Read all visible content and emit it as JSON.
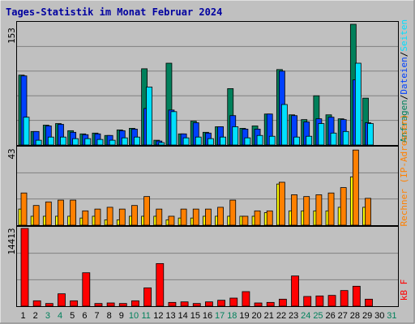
{
  "header": {
    "title": "Tages-Statistik im Monat Februar 2024"
  },
  "colors": {
    "background": "#c0c0c0",
    "panel": "#c0c0c0",
    "grid": "#808080",
    "title": "#0000a0",
    "anfragen": "#00805b",
    "dateien": "#0040ff",
    "seiten": "#00e0ff",
    "rechner": "#ffff00",
    "besuche": "#ff8000",
    "kbf": "#ff0000",
    "weekday": "#000000",
    "weekend": "#00805b"
  },
  "chart_data": [
    {
      "type": "bar",
      "name": "hits",
      "ymax_label": "153",
      "right_label": {
        "parts": [
          {
            "text": "Anfragen",
            "color": "#00805b"
          },
          {
            "text": "/",
            "color": "#000000"
          },
          {
            "text": "Dateien",
            "color": "#0040ff"
          },
          {
            "text": "/",
            "color": "#000000"
          },
          {
            "text": "Seiten",
            "color": "#00e0ff"
          }
        ]
      },
      "ylim": [
        0,
        153
      ],
      "categories": [
        "1",
        "2",
        "3",
        "4",
        "5",
        "6",
        "7",
        "8",
        "9",
        "10",
        "11",
        "12",
        "13",
        "14",
        "15",
        "16",
        "17",
        "18",
        "19",
        "20",
        "21",
        "22",
        "23",
        "24",
        "25",
        "26",
        "27",
        "28",
        "29",
        "30",
        "31"
      ],
      "series": [
        {
          "name": "Anfragen",
          "color": "#00805b",
          "values": [
            88,
            17,
            25,
            27,
            18,
            14,
            15,
            12,
            19,
            21,
            96,
            6,
            103,
            14,
            30,
            16,
            23,
            71,
            21,
            24,
            39,
            95,
            38,
            32,
            62,
            38,
            33,
            152,
            59,
            0,
            0
          ]
        },
        {
          "name": "Dateien",
          "color": "#0040ff",
          "values": [
            87,
            17,
            24,
            26,
            16,
            13,
            14,
            12,
            18,
            20,
            46,
            5,
            44,
            14,
            28,
            15,
            23,
            37,
            20,
            20,
            39,
            93,
            37,
            29,
            33,
            35,
            32,
            82,
            28,
            0,
            0
          ]
        },
        {
          "name": "Seiten",
          "color": "#00e0ff",
          "values": [
            35,
            6,
            10,
            10,
            8,
            8,
            7,
            6,
            9,
            10,
            73,
            3,
            42,
            9,
            10,
            8,
            10,
            23,
            9,
            12,
            11,
            51,
            10,
            11,
            27,
            15,
            17,
            103,
            27,
            0,
            0
          ]
        }
      ]
    },
    {
      "type": "bar",
      "name": "visits",
      "ymax_label": "43",
      "right_label": {
        "parts": [
          {
            "text": "Rechner (IP-Adressen)",
            "color": "#ff8000"
          }
        ]
      },
      "ylim": [
        0,
        43
      ],
      "categories": [
        "1",
        "2",
        "3",
        "4",
        "5",
        "6",
        "7",
        "8",
        "9",
        "10",
        "11",
        "12",
        "13",
        "14",
        "15",
        "16",
        "17",
        "18",
        "19",
        "20",
        "21",
        "22",
        "23",
        "24",
        "25",
        "26",
        "27",
        "28",
        "29",
        "30",
        "31"
      ],
      "series": [
        {
          "name": "Rechner",
          "color": "#ffff00",
          "values": [
            9,
            5,
            5,
            5,
            5,
            4,
            5,
            3,
            3,
            5,
            5,
            5,
            3,
            4,
            4,
            5,
            5,
            5,
            5,
            5,
            7,
            23,
            8,
            8,
            8,
            8,
            10,
            27,
            10,
            0,
            0
          ]
        },
        {
          "name": "Besuche",
          "color": "#ff8000",
          "values": [
            18,
            11,
            13,
            14,
            14,
            8,
            9,
            10,
            9,
            11,
            16,
            9,
            5,
            9,
            9,
            9,
            10,
            14,
            5,
            8,
            8,
            24,
            17,
            16,
            17,
            18,
            21,
            42,
            15,
            0,
            0
          ]
        }
      ]
    },
    {
      "type": "bar",
      "name": "volume",
      "ymax_label": "14413",
      "right_label": {
        "parts": [
          {
            "text": "kB F",
            "color": "#ff0000"
          }
        ]
      },
      "ylim": [
        0,
        14413
      ],
      "categories": [
        "1",
        "2",
        "3",
        "4",
        "5",
        "6",
        "7",
        "8",
        "9",
        "10",
        "11",
        "12",
        "13",
        "14",
        "15",
        "16",
        "17",
        "18",
        "19",
        "20",
        "21",
        "22",
        "23",
        "24",
        "25",
        "26",
        "27",
        "28",
        "29",
        "30",
        "31"
      ],
      "series": [
        {
          "name": "kB F",
          "color": "#ff0000",
          "values": [
            14413,
            1000,
            500,
            2300,
            1000,
            6200,
            500,
            600,
            500,
            1000,
            3400,
            7900,
            700,
            800,
            500,
            800,
            1100,
            1500,
            2700,
            600,
            700,
            1300,
            5600,
            1800,
            1900,
            2000,
            2900,
            3700,
            1300,
            0,
            0
          ]
        }
      ]
    }
  ],
  "x_axis": {
    "labels": [
      "1",
      "2",
      "3",
      "4",
      "5",
      "6",
      "7",
      "8",
      "9",
      "10",
      "11",
      "12",
      "13",
      "14",
      "15",
      "16",
      "17",
      "18",
      "19",
      "20",
      "21",
      "22",
      "23",
      "24",
      "25",
      "26",
      "27",
      "28",
      "29",
      "30",
      "31"
    ],
    "weekend": [
      false,
      false,
      true,
      true,
      false,
      false,
      false,
      false,
      false,
      true,
      true,
      false,
      false,
      false,
      false,
      false,
      true,
      true,
      false,
      false,
      false,
      false,
      false,
      true,
      true,
      false,
      false,
      false,
      false,
      false,
      true
    ]
  }
}
